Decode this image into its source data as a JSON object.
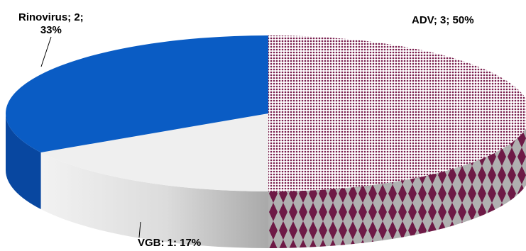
{
  "chart_data": {
    "type": "pie",
    "style": "3d",
    "slices": [
      {
        "name": "ADV",
        "value": 3,
        "percent": 50,
        "label_lines": [
          "ADV; 3; 50%"
        ],
        "fill": "pattern-diamond",
        "colors": [
          "#7a1f4e",
          "#ffffff",
          "#a8a8a8"
        ]
      },
      {
        "name": "VGB",
        "value": 1,
        "percent": 17,
        "label_lines": [
          "VGB: 1: 17%"
        ],
        "fill": "solid",
        "colors": [
          "#efefef",
          "#b8b8b8"
        ]
      },
      {
        "name": "Rinovirus",
        "value": 2,
        "percent": 33,
        "label_lines": [
          "Rinovirus; 2;",
          "33%"
        ],
        "fill": "solid",
        "colors": [
          "#0a5cc4",
          "#0847a0"
        ]
      }
    ]
  }
}
